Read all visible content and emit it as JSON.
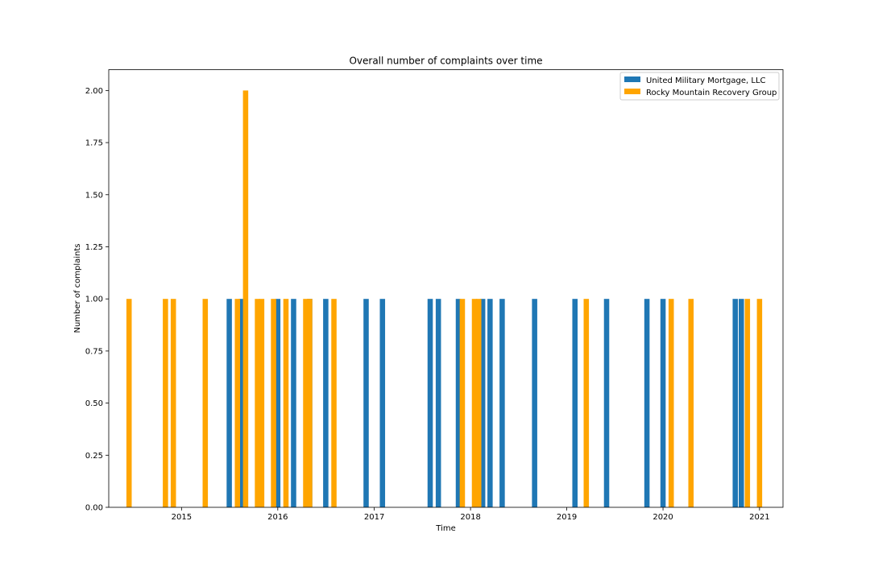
{
  "chart_data": {
    "type": "bar",
    "title": "Overall number of complaints over time",
    "xlabel": "Time",
    "ylabel": "Number of complaints",
    "xlim": [
      "2014-03-31",
      "2021-03-31"
    ],
    "ylim": [
      0,
      2.1
    ],
    "x_ticks": [
      "2015",
      "2016",
      "2017",
      "2018",
      "2019",
      "2020",
      "2021"
    ],
    "y_ticks": [
      "0.00",
      "0.25",
      "0.50",
      "0.75",
      "1.00",
      "1.25",
      "1.50",
      "1.75",
      "2.00"
    ],
    "legend_position": "top-right",
    "grid": false,
    "series": [
      {
        "name": "United Military Mortgage, LLC",
        "color": "#1f77b4",
        "points": [
          {
            "x": "2015-07-01",
            "y": 1
          },
          {
            "x": "2015-08-16",
            "y": 1
          },
          {
            "x": "2016-01-01",
            "y": 1
          },
          {
            "x": "2016-03-01",
            "y": 1
          },
          {
            "x": "2016-05-01",
            "y": 1
          },
          {
            "x": "2016-07-01",
            "y": 1
          },
          {
            "x": "2016-12-01",
            "y": 1
          },
          {
            "x": "2017-02-01",
            "y": 1
          },
          {
            "x": "2017-08-01",
            "y": 1
          },
          {
            "x": "2017-09-01",
            "y": 1
          },
          {
            "x": "2017-11-16",
            "y": 1
          },
          {
            "x": "2018-02-16",
            "y": 1
          },
          {
            "x": "2018-03-16",
            "y": 1
          },
          {
            "x": "2018-05-01",
            "y": 1
          },
          {
            "x": "2018-09-01",
            "y": 1
          },
          {
            "x": "2019-02-01",
            "y": 1
          },
          {
            "x": "2019-06-01",
            "y": 1
          },
          {
            "x": "2019-11-01",
            "y": 1
          },
          {
            "x": "2020-01-01",
            "y": 1
          },
          {
            "x": "2020-10-01",
            "y": 1
          },
          {
            "x": "2020-10-24",
            "y": 1
          }
        ]
      },
      {
        "name": "Rocky Mountain Recovery Group",
        "color": "#ffa500",
        "points": [
          {
            "x": "2014-06-16",
            "y": 1
          },
          {
            "x": "2014-11-01",
            "y": 1
          },
          {
            "x": "2014-12-01",
            "y": 1
          },
          {
            "x": "2015-04-01",
            "y": 1
          },
          {
            "x": "2015-08-01",
            "y": 1
          },
          {
            "x": "2015-09-01",
            "y": 2
          },
          {
            "x": "2015-10-16",
            "y": 1
          },
          {
            "x": "2015-11-01",
            "y": 1
          },
          {
            "x": "2015-12-16",
            "y": 1
          },
          {
            "x": "2016-02-01",
            "y": 1
          },
          {
            "x": "2016-04-16",
            "y": 1
          },
          {
            "x": "2016-05-01",
            "y": 1
          },
          {
            "x": "2016-08-01",
            "y": 1
          },
          {
            "x": "2017-12-01",
            "y": 1
          },
          {
            "x": "2018-01-16",
            "y": 1
          },
          {
            "x": "2018-02-01",
            "y": 1
          },
          {
            "x": "2019-03-16",
            "y": 1
          },
          {
            "x": "2020-02-01",
            "y": 1
          },
          {
            "x": "2020-04-16",
            "y": 1
          },
          {
            "x": "2020-11-16",
            "y": 1
          },
          {
            "x": "2021-01-01",
            "y": 1
          }
        ]
      }
    ]
  }
}
